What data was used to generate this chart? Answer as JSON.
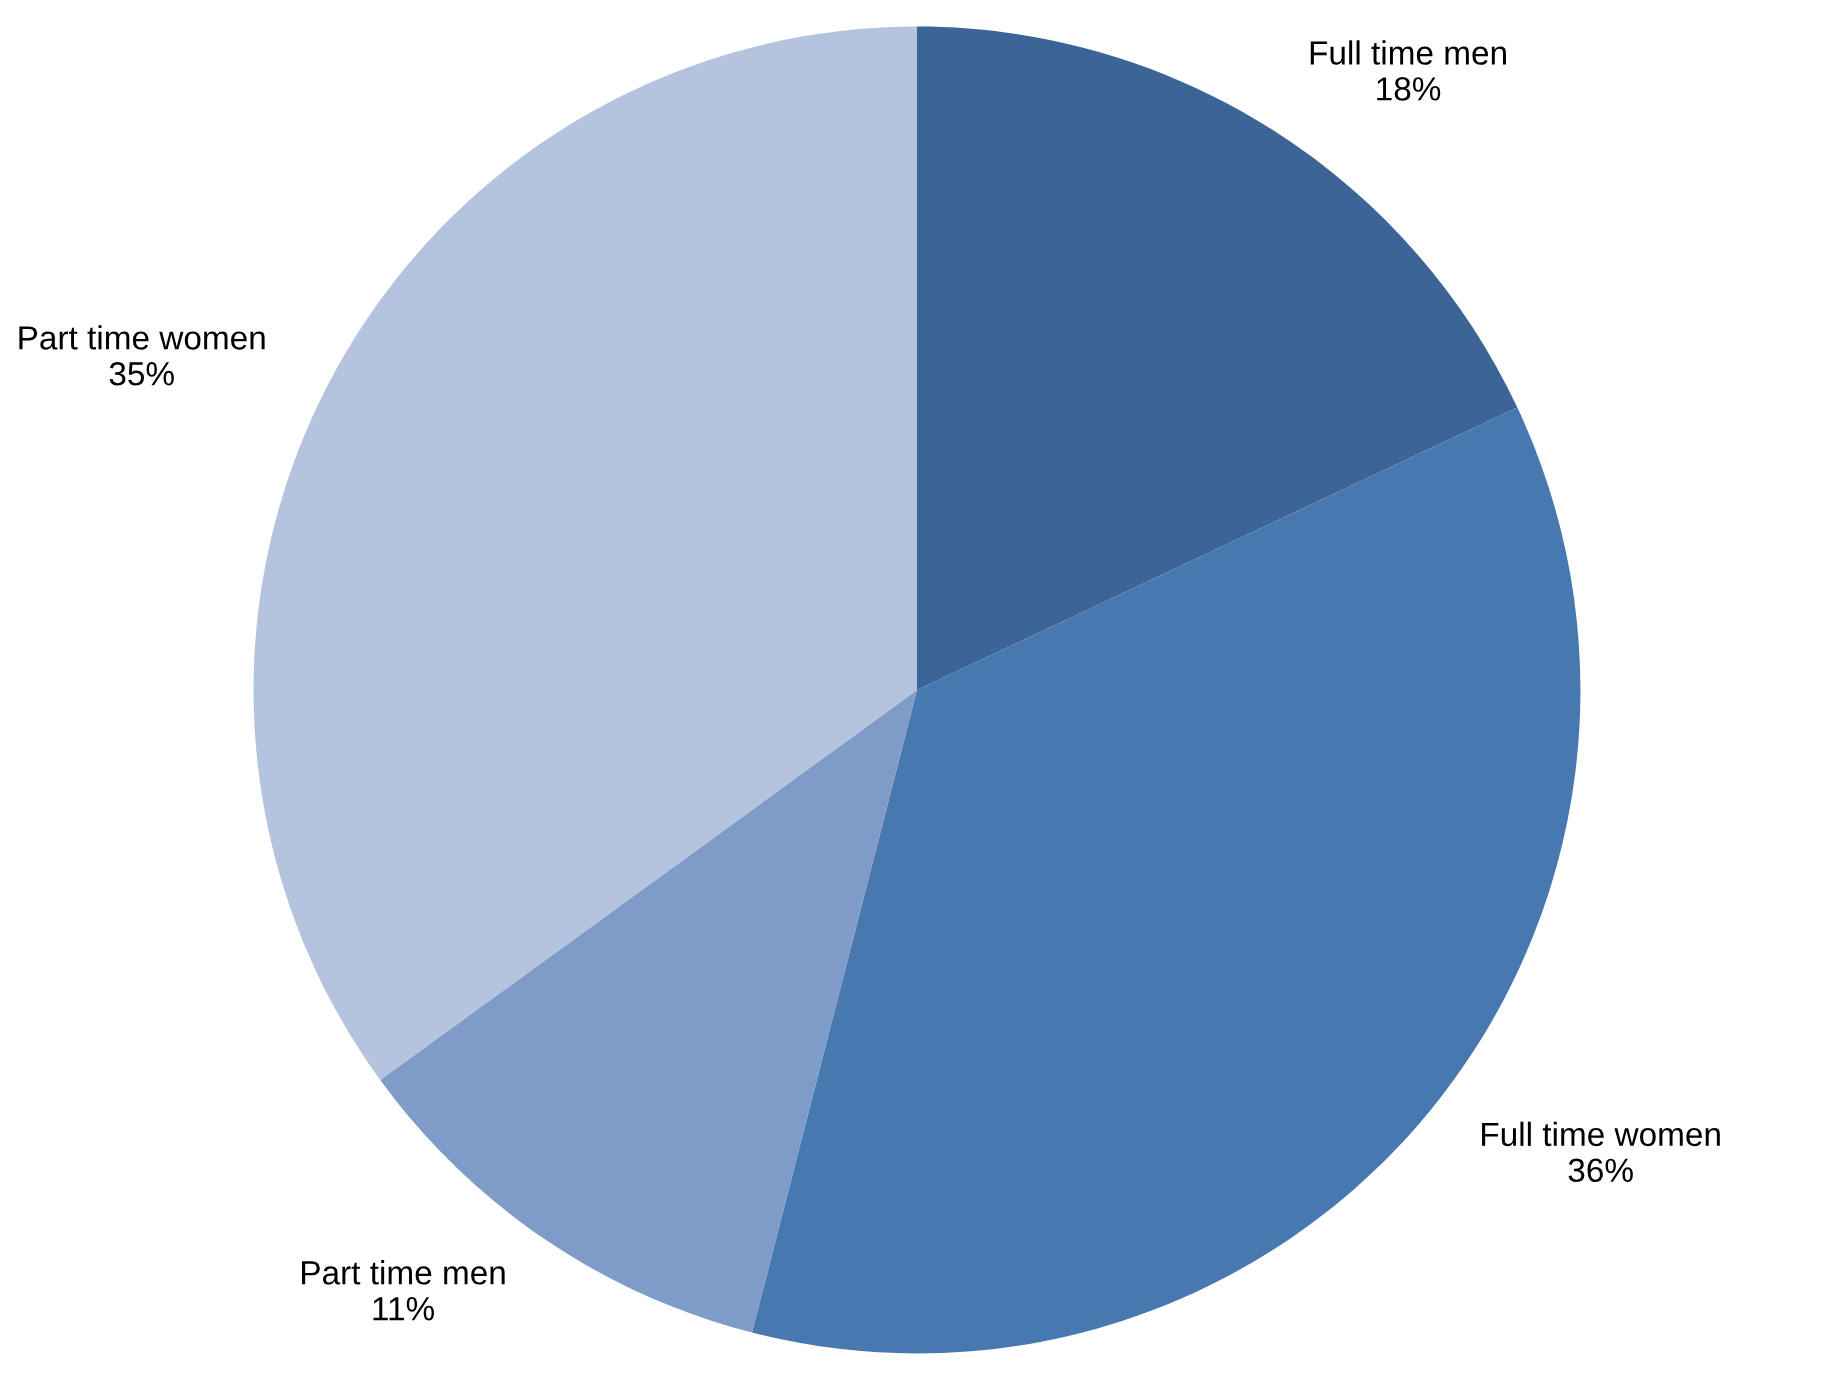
{
  "chart_data": {
    "type": "pie",
    "categories": [
      "Full time men",
      "Full time women",
      "Part time men",
      "Part time women"
    ],
    "values": [
      18,
      36,
      11,
      35
    ],
    "value_labels": [
      "18%",
      "36%",
      "11%",
      "35%"
    ],
    "colors": [
      "#3c6496",
      "#4778b0",
      "#7f9cc8",
      "#b4c3de"
    ]
  }
}
